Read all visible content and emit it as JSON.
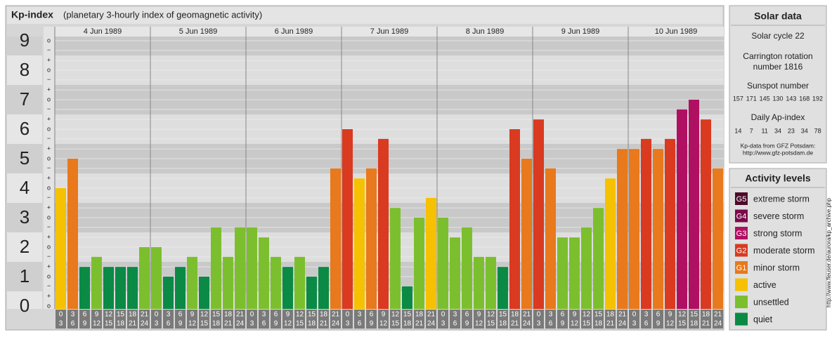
{
  "chart_data": {
    "type": "bar",
    "title": "Kp-index",
    "subtitle": "(planetary 3-hourly index of geomagnetic activity)",
    "days": [
      "4 Jun 1989",
      "5 Jun 1989",
      "6 Jun 1989",
      "7 Jun 1989",
      "8 Jun 1989",
      "9 Jun 1989",
      "10 Jun 1989"
    ],
    "hours": [
      [
        "0",
        "3"
      ],
      [
        "3",
        "6"
      ],
      [
        "6",
        "9"
      ],
      [
        "9",
        "12"
      ],
      [
        "12",
        "15"
      ],
      [
        "15",
        "18"
      ],
      [
        "18",
        "21"
      ],
      [
        "21",
        "24"
      ]
    ],
    "values": [
      4,
      5,
      1.33,
      1.67,
      1.33,
      1.33,
      1.33,
      2,
      2,
      1,
      1.33,
      1.67,
      1,
      2.67,
      1.67,
      2.67,
      2.67,
      2.33,
      1.67,
      1.33,
      1.67,
      1,
      1.33,
      4.67,
      6,
      4.33,
      4.67,
      5.67,
      3.33,
      0.67,
      3,
      3.67,
      3,
      2.33,
      2.67,
      1.67,
      1.67,
      1.33,
      6,
      5,
      6.33,
      4.67,
      2.33,
      2.33,
      2.67,
      3.33,
      4.33,
      5.33,
      5.33,
      5.67,
      5.33,
      5.67,
      6.67,
      7,
      6.33,
      4.67
    ],
    "colors": [
      "#f5c100",
      "#e8791c",
      "#0b8a45",
      "#7cbf2e",
      "#0b8a45",
      "#0b8a45",
      "#0b8a45",
      "#7cbf2e",
      "#7cbf2e",
      "#0b8a45",
      "#0b8a45",
      "#7cbf2e",
      "#0b8a45",
      "#7cbf2e",
      "#7cbf2e",
      "#7cbf2e",
      "#7cbf2e",
      "#7cbf2e",
      "#7cbf2e",
      "#0b8a45",
      "#7cbf2e",
      "#0b8a45",
      "#0b8a45",
      "#e8791c",
      "#d93a20",
      "#f5c100",
      "#e8791c",
      "#d93a20",
      "#7cbf2e",
      "#0b8a45",
      "#7cbf2e",
      "#f5c100",
      "#7cbf2e",
      "#7cbf2e",
      "#7cbf2e",
      "#7cbf2e",
      "#7cbf2e",
      "#0b8a45",
      "#d93a20",
      "#e8791c",
      "#d93a20",
      "#e8791c",
      "#7cbf2e",
      "#7cbf2e",
      "#7cbf2e",
      "#7cbf2e",
      "#f5c100",
      "#e8791c",
      "#e8791c",
      "#d93a20",
      "#e8791c",
      "#d93a20",
      "#b01062",
      "#b01062",
      "#d93a20",
      "#e8791c"
    ],
    "ylim": [
      0,
      9
    ],
    "yticks": [
      0,
      1,
      2,
      3,
      4,
      5,
      6,
      7,
      8,
      9
    ],
    "minor_ticks": [
      {
        "value": 0,
        "label": "o"
      },
      {
        "value": 0.33,
        "label": "+"
      },
      {
        "value": 0.67,
        "label": "−"
      },
      {
        "value": 1,
        "label": "o"
      },
      {
        "value": 1.33,
        "label": "+"
      },
      {
        "value": 1.67,
        "label": "−"
      },
      {
        "value": 2,
        "label": "o"
      },
      {
        "value": 2.33,
        "label": "+"
      },
      {
        "value": 2.67,
        "label": "−"
      },
      {
        "value": 3,
        "label": "o"
      },
      {
        "value": 3.33,
        "label": "+"
      },
      {
        "value": 3.67,
        "label": "−"
      },
      {
        "value": 4,
        "label": "o"
      },
      {
        "value": 4.33,
        "label": "+"
      },
      {
        "value": 4.67,
        "label": "−"
      },
      {
        "value": 5,
        "label": "o"
      },
      {
        "value": 5.33,
        "label": "+"
      },
      {
        "value": 5.67,
        "label": "−"
      },
      {
        "value": 6,
        "label": "o"
      },
      {
        "value": 6.33,
        "label": "+"
      },
      {
        "value": 6.67,
        "label": "−"
      },
      {
        "value": 7,
        "label": "o"
      },
      {
        "value": 7.33,
        "label": "+"
      },
      {
        "value": 7.67,
        "label": "−"
      },
      {
        "value": 8,
        "label": "o"
      },
      {
        "value": 8.33,
        "label": "+"
      },
      {
        "value": 8.67,
        "label": "−"
      },
      {
        "value": 9,
        "label": "o"
      }
    ],
    "solar_data": {
      "title": "Solar data",
      "cycle": "Solar cycle 22",
      "carrington": [
        "Carrington rotation",
        "number 1816"
      ],
      "sunspot_title": "Sunspot number",
      "sunspot_numbers": [
        157,
        171,
        145,
        130,
        143,
        168,
        192
      ],
      "ap_title": "Daily Ap-index",
      "ap_index": [
        14,
        7,
        11,
        34,
        23,
        34,
        78
      ],
      "source": [
        "Kp-data from GFZ Potsdam:",
        "http://www.gfz-potsdam.de"
      ]
    },
    "legend": {
      "title": "Activity levels",
      "items": [
        {
          "badge": "G5",
          "name": "extreme storm",
          "color": "#4d0a2a"
        },
        {
          "badge": "G4",
          "name": "severe storm",
          "color": "#7a0a4a"
        },
        {
          "badge": "G3",
          "name": "strong storm",
          "color": "#b01062"
        },
        {
          "badge": "G2",
          "name": "moderate storm",
          "color": "#d93a20"
        },
        {
          "badge": "G1",
          "name": "minor storm",
          "color": "#e8791c"
        },
        {
          "name": "active",
          "color": "#f5c100"
        },
        {
          "name": "unsettled",
          "color": "#7cbf2e"
        },
        {
          "name": "quiet",
          "color": "#0b8a45"
        }
      ]
    },
    "credit": "http://www.fleuser.de/aurora/kp_archive.php"
  }
}
